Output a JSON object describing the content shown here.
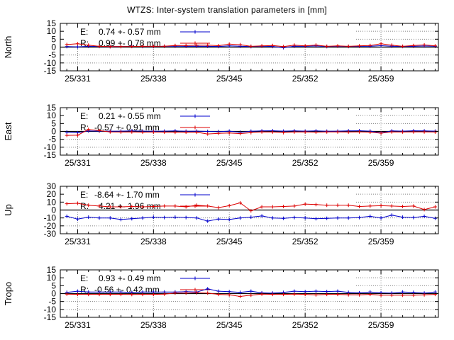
{
  "window": {
    "title": "WTZS: Inter-system translation parameters in [mm]"
  },
  "chart_data": {
    "type": "line",
    "title": "WTZS: Inter-system translation parameters in [mm]",
    "x_axis": {
      "range": [
        329.4,
        364.3
      ],
      "major_ticks": [
        331,
        338,
        345,
        352,
        359
      ],
      "major_tick_labels": [
        "25/331",
        "25/338",
        "25/345",
        "25/352",
        "25/359"
      ],
      "minor_tick_step_days": 1,
      "days": [
        330,
        331,
        332,
        333,
        334,
        335,
        336,
        337,
        338,
        339,
        340,
        341,
        342,
        343,
        344,
        345,
        346,
        347,
        348,
        349,
        350,
        351,
        352,
        353,
        354,
        355,
        356,
        357,
        358,
        359,
        360,
        361,
        362,
        363,
        364
      ]
    },
    "series_colors": {
      "E": "#0000cc",
      "R": "#dd0000"
    },
    "grid": {
      "color": "#828282",
      "style": "dotted"
    },
    "axis_color": "#000000",
    "key_box_color": "#ffffff",
    "panels": [
      {
        "name": "North",
        "ylim": [
          -15,
          15
        ],
        "yticks": [
          15,
          10,
          5,
          0,
          -5,
          -10,
          -15
        ],
        "legend": [
          {
            "series": "E",
            "label": "E:",
            "value": "0.74 +- 0.57 mm"
          },
          {
            "series": "R",
            "label": "R:",
            "value": "0.99 +- 0.78 mm"
          }
        ],
        "series": [
          {
            "name": "E",
            "values": [
              0.3,
              0.2,
              0.5,
              0.4,
              0.3,
              0.4,
              0.5,
              0.4,
              0.4,
              0.5,
              0.6,
              0.5,
              0.6,
              0.5,
              0.4,
              0.8,
              0.6,
              0.3,
              0.6,
              0.4,
              -0.3,
              0.6,
              0.5,
              0.7,
              0.3,
              0.6,
              0.4,
              0.5,
              0.6,
              0.9,
              0.6,
              0.4,
              0.5,
              0.7,
              0.5
            ]
          },
          {
            "name": "R",
            "values": [
              1.6,
              2.1,
              1.2,
              0.5,
              0.3,
              0.3,
              0.4,
              0.5,
              0.5,
              0.6,
              1.0,
              1.0,
              1.2,
              1.2,
              0.9,
              1.9,
              1.5,
              0.5,
              0.8,
              1.0,
              0.3,
              1.2,
              0.8,
              1.3,
              0.5,
              0.8,
              0.5,
              0.8,
              1.0,
              2.1,
              1.2,
              0.5,
              1.0,
              1.4,
              0.8
            ]
          }
        ]
      },
      {
        "name": "East",
        "ylim": [
          -15,
          15
        ],
        "yticks": [
          15,
          10,
          5,
          0,
          -5,
          -10,
          -15
        ],
        "legend": [
          {
            "series": "E",
            "label": "E:",
            "value": "0.21 +- 0.55 mm"
          },
          {
            "series": "R",
            "label": "R:",
            "value": "-0.57 +- 0.91 mm"
          }
        ],
        "series": [
          {
            "name": "E",
            "values": [
              -0.5,
              -0.9,
              0.3,
              0.2,
              0.1,
              0.2,
              0.3,
              0.2,
              0.1,
              0.2,
              0.3,
              0.1,
              0.2,
              0.0,
              -0.2,
              0.2,
              -0.6,
              0.1,
              0.3,
              0.4,
              0.2,
              0.3,
              0.2,
              0.3,
              0.1,
              0.2,
              0.3,
              0.4,
              0.2,
              -0.9,
              0.3,
              0.2,
              0.4,
              0.3,
              0.2
            ]
          },
          {
            "name": "R",
            "values": [
              -2.5,
              -2.4,
              1.2,
              0.5,
              -0.3,
              -0.4,
              -0.3,
              -0.5,
              -0.4,
              -0.5,
              -0.6,
              -0.5,
              -0.6,
              -1.6,
              -1.2,
              -1.0,
              -1.4,
              -0.8,
              -0.3,
              -0.4,
              -0.8,
              -0.4,
              -0.3,
              -0.5,
              -0.3,
              -0.3,
              -0.4,
              -0.3,
              -0.5,
              -1.1,
              -0.3,
              -0.4,
              -0.3,
              -0.3,
              -0.4
            ]
          }
        ]
      },
      {
        "name": "Up",
        "ylim": [
          -30,
          30
        ],
        "yticks": [
          30,
          20,
          10,
          0,
          -10,
          -20,
          -30
        ],
        "legend": [
          {
            "series": "E",
            "label": "E:",
            "value": "-8.64 +- 1.70 mm"
          },
          {
            "series": "R",
            "label": "R:",
            "value": "4.21 +- 1.96 mm"
          }
        ],
        "series": [
          {
            "name": "E",
            "values": [
              -8,
              -11.5,
              -9,
              -10,
              -10,
              -12,
              -11,
              -10,
              -9,
              -9.5,
              -9,
              -9.5,
              -10,
              -14,
              -11.5,
              -12,
              -10,
              -9,
              -7.5,
              -10,
              -10.5,
              -9.5,
              -10,
              -11,
              -10.5,
              -10,
              -10,
              -9.5,
              -8,
              -10,
              -6.5,
              -9,
              -9.5,
              -8,
              -10.5
            ]
          },
          {
            "name": "R",
            "values": [
              8,
              8.5,
              6,
              5,
              4,
              4,
              4.5,
              4,
              4.5,
              5,
              5,
              4,
              6,
              5,
              3,
              5.5,
              9,
              -1,
              4,
              4,
              4.5,
              5,
              7.5,
              7,
              6,
              6,
              6,
              4.5,
              5,
              5.5,
              5,
              4.5,
              5,
              0.5,
              4
            ]
          }
        ]
      },
      {
        "name": "Tropo",
        "ylim": [
          -15,
          15
        ],
        "yticks": [
          15,
          10,
          5,
          0,
          -5,
          -10,
          -15
        ],
        "legend": [
          {
            "series": "E",
            "label": "E:",
            "value": "0.93 +- 0.49 mm"
          },
          {
            "series": "R",
            "label": "R:",
            "value": "-0.56 +- 0.42 mm"
          }
        ],
        "series": [
          {
            "name": "E",
            "values": [
              0.8,
              1.5,
              1.0,
              1.0,
              1.0,
              1.0,
              0.8,
              1.0,
              1.0,
              1.0,
              1.0,
              1.2,
              1.0,
              3.0,
              1.5,
              1.2,
              0.8,
              1.5,
              0.5,
              0.3,
              0.8,
              1.5,
              1.2,
              1.5,
              1.3,
              1.5,
              0.8,
              0.5,
              1.0,
              0.5,
              0.3,
              1.0,
              0.8,
              0.3,
              1.0
            ]
          },
          {
            "name": "R",
            "values": [
              -0.3,
              -0.5,
              -0.5,
              -0.5,
              -0.5,
              -0.5,
              -0.6,
              -0.5,
              -0.5,
              -0.3,
              0.3,
              0.3,
              0.5,
              0.3,
              -0.5,
              -0.8,
              -1.8,
              -1.0,
              -0.3,
              -0.5,
              -0.5,
              -0.3,
              -0.5,
              -0.8,
              -0.5,
              -0.5,
              -0.7,
              -0.8,
              -0.5,
              -1.0,
              -1.0,
              -1.0,
              -1.0,
              -0.8,
              -0.5
            ]
          }
        ]
      }
    ]
  }
}
